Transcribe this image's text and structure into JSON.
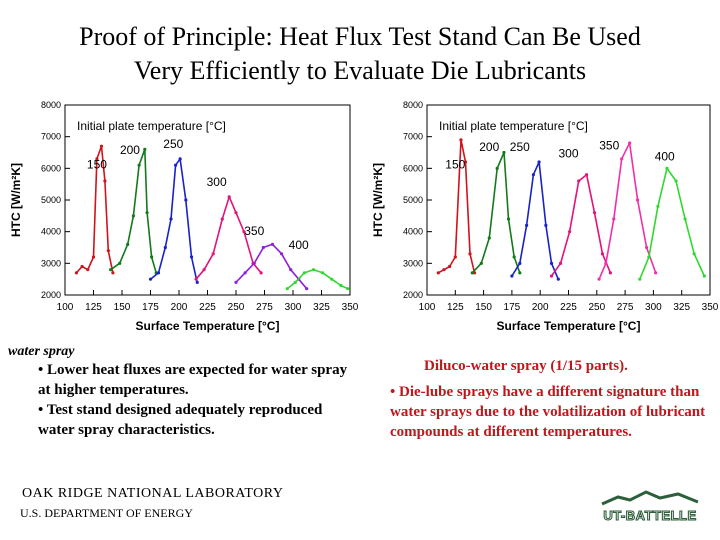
{
  "title": {
    "line1": "Proof of Principle: Heat Flux Test Stand Can Be Used",
    "line2": "Very Efficiently to Evaluate Die Lubricants"
  },
  "left_text": {
    "label": "water spray",
    "bullet1": "• Lower heat fluxes are expected for water spray at higher temperatures.",
    "bullet2": "• Test stand designed adequately reproduced water spray characteristics."
  },
  "right_text": {
    "heading": "Diluco-water spray (1/15 parts).",
    "bullet1": "• Die-lube sprays have a different signature than water sprays due to the volatilization of lubricant compounds at different temperatures."
  },
  "footer": {
    "org": "OAK RIDGE NATIONAL LABORATORY",
    "dept": "U.S. DEPARTMENT OF ENERGY",
    "logo_text": "UT-BATTELLE"
  },
  "chart_data": [
    {
      "type": "line",
      "title": "",
      "legend_title": "Initial plate temperature [°C]",
      "xlabel": "Surface Temperature [°C]",
      "ylabel": "HTC [W/m²K]",
      "xlim": [
        100,
        350
      ],
      "ylim": [
        2000,
        8000
      ],
      "xticks": [
        "100",
        "125",
        "150",
        "175",
        "200",
        "225",
        "250",
        "275",
        "300",
        "325",
        "350"
      ],
      "yticks": [
        "2000",
        "3000",
        "4000",
        "5000",
        "6000",
        "7000",
        "8000"
      ],
      "series": [
        {
          "name": "150",
          "color": "#d0141c",
          "label_at": [
            128,
            6000
          ],
          "x": [
            110,
            115,
            120,
            125,
            128,
            132,
            135,
            138,
            142
          ],
          "y": [
            2700,
            2900,
            2800,
            3200,
            6300,
            6700,
            5600,
            3400,
            2700
          ]
        },
        {
          "name": "200",
          "color": "#127a1a",
          "label_at": [
            157,
            6450
          ],
          "x": [
            140,
            148,
            155,
            160,
            165,
            170,
            172,
            176,
            180
          ],
          "y": [
            2800,
            3000,
            3600,
            4500,
            6100,
            6600,
            4600,
            3200,
            2700
          ]
        },
        {
          "name": "250",
          "color": "#1822c8",
          "label_at": [
            195,
            6650
          ],
          "x": [
            175,
            182,
            188,
            193,
            197,
            201,
            206,
            211,
            216
          ],
          "y": [
            2500,
            2700,
            3500,
            4400,
            6100,
            6300,
            5000,
            3200,
            2400
          ]
        },
        {
          "name": "300",
          "color": "#e0147a",
          "label_at": [
            233,
            5450
          ],
          "x": [
            215,
            222,
            230,
            238,
            244,
            250,
            257,
            265,
            272
          ],
          "y": [
            2500,
            2800,
            3300,
            4400,
            5100,
            4600,
            4000,
            3000,
            2700
          ]
        },
        {
          "name": "350",
          "color": "#9020d8",
          "label_at": [
            266,
            3900
          ],
          "x": [
            250,
            258,
            266,
            274,
            282,
            290,
            298,
            305,
            312
          ],
          "y": [
            2400,
            2700,
            3000,
            3500,
            3600,
            3300,
            2800,
            2500,
            2200
          ]
        },
        {
          "name": "400",
          "color": "#30d830",
          "label_at": [
            305,
            3450
          ],
          "x": [
            295,
            302,
            310,
            318,
            326,
            334,
            342,
            348
          ],
          "y": [
            2200,
            2400,
            2700,
            2800,
            2700,
            2500,
            2300,
            2200
          ]
        }
      ]
    },
    {
      "type": "line",
      "title": "",
      "legend_title": "Initial plate temperature [°C]",
      "xlabel": "Surface Temperature [°C]",
      "ylabel": "HTC [W/m²K]",
      "xlim": [
        100,
        350
      ],
      "ylim": [
        2000,
        8000
      ],
      "xticks": [
        "100",
        "125",
        "150",
        "175",
        "200",
        "225",
        "250",
        "275",
        "300",
        "325",
        "350"
      ],
      "yticks": [
        "2000",
        "3000",
        "4000",
        "5000",
        "6000",
        "7000",
        "8000"
      ],
      "series": [
        {
          "name": "150",
          "color": "#d0141c",
          "label_at": [
            125,
            6000
          ],
          "x": [
            110,
            115,
            120,
            125,
            130,
            134,
            138,
            142
          ],
          "y": [
            2700,
            2800,
            2900,
            3200,
            6900,
            6200,
            3300,
            2700
          ]
        },
        {
          "name": "200",
          "color": "#127a1a",
          "label_at": [
            155,
            6550
          ],
          "x": [
            140,
            148,
            155,
            162,
            168,
            172,
            177,
            182
          ],
          "y": [
            2700,
            3000,
            3800,
            6000,
            6500,
            4400,
            3200,
            2700
          ]
        },
        {
          "name": "250",
          "color": "#1822c8",
          "label_at": [
            182,
            6550
          ],
          "x": [
            175,
            182,
            188,
            194,
            199,
            205,
            210,
            216
          ],
          "y": [
            2600,
            3000,
            4200,
            5800,
            6200,
            4200,
            3000,
            2500
          ]
        },
        {
          "name": "300",
          "color": "#e0147a",
          "label_at": [
            225,
            6350
          ],
          "x": [
            210,
            218,
            226,
            234,
            241,
            248,
            255,
            262
          ],
          "y": [
            2600,
            3000,
            4000,
            5600,
            5800,
            4600,
            3300,
            2700
          ]
        },
        {
          "name": "350",
          "color": "#f030a8",
          "label_at": [
            261,
            6600
          ],
          "x": [
            252,
            258,
            265,
            272,
            279,
            286,
            294,
            302
          ],
          "y": [
            2500,
            3000,
            4400,
            6300,
            6800,
            5000,
            3500,
            2700
          ]
        },
        {
          "name": "400",
          "color": "#30d830",
          "label_at": [
            310,
            6250
          ],
          "x": [
            288,
            296,
            304,
            312,
            320,
            328,
            336,
            345
          ],
          "y": [
            2500,
            3200,
            4800,
            6000,
            5600,
            4400,
            3300,
            2600
          ]
        }
      ]
    }
  ]
}
